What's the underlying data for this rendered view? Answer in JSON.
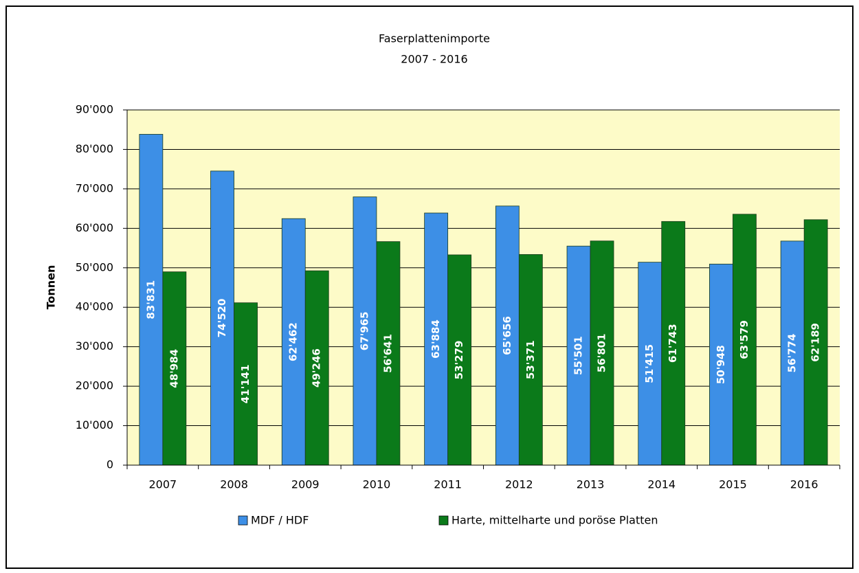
{
  "chart_data": {
    "type": "bar",
    "title": "Faserplattenimporte",
    "subtitle": "2007 - 2016",
    "y_label": "Tonnen",
    "categories": [
      "2007",
      "2008",
      "2009",
      "2010",
      "2011",
      "2012",
      "2013",
      "2014",
      "2015",
      "2016"
    ],
    "series": [
      {
        "name": "MDF / HDF",
        "color": "#3d8fe6",
        "values": [
          83831,
          74520,
          62462,
          67965,
          63884,
          65656,
          55501,
          51415,
          50948,
          56774
        ],
        "value_labels": [
          "83'831",
          "74'520",
          "62'462",
          "67'965",
          "63'884",
          "65'656",
          "55'501",
          "51'415",
          "50'948",
          "56'774"
        ]
      },
      {
        "name": "Harte, mittelharte und poröse Platten",
        "color": "#0b7a1a",
        "values": [
          48984,
          41141,
          49246,
          56641,
          53279,
          53371,
          56801,
          61743,
          63579,
          62189
        ],
        "value_labels": [
          "48'984",
          "41'141",
          "49'246",
          "56'641",
          "53'279",
          "53'371",
          "56'801",
          "61'743",
          "63'579",
          "62'189"
        ]
      }
    ],
    "ylim": [
      0,
      90000
    ],
    "yticks": [
      0,
      {
        "value": 10000,
        "label": "10'000"
      },
      {
        "value": 20000,
        "label": "20'000"
      },
      {
        "value": 30000,
        "label": "30'000"
      },
      {
        "value": 40000,
        "label": "40'000"
      },
      {
        "value": 50000,
        "label": "50'000"
      },
      {
        "value": 60000,
        "label": "60'000"
      },
      {
        "value": 70000,
        "label": "70'000"
      },
      {
        "value": 80000,
        "label": "80'000"
      },
      {
        "value": 90000,
        "label": "90'000"
      }
    ],
    "grid": true,
    "legend": "bottom"
  }
}
